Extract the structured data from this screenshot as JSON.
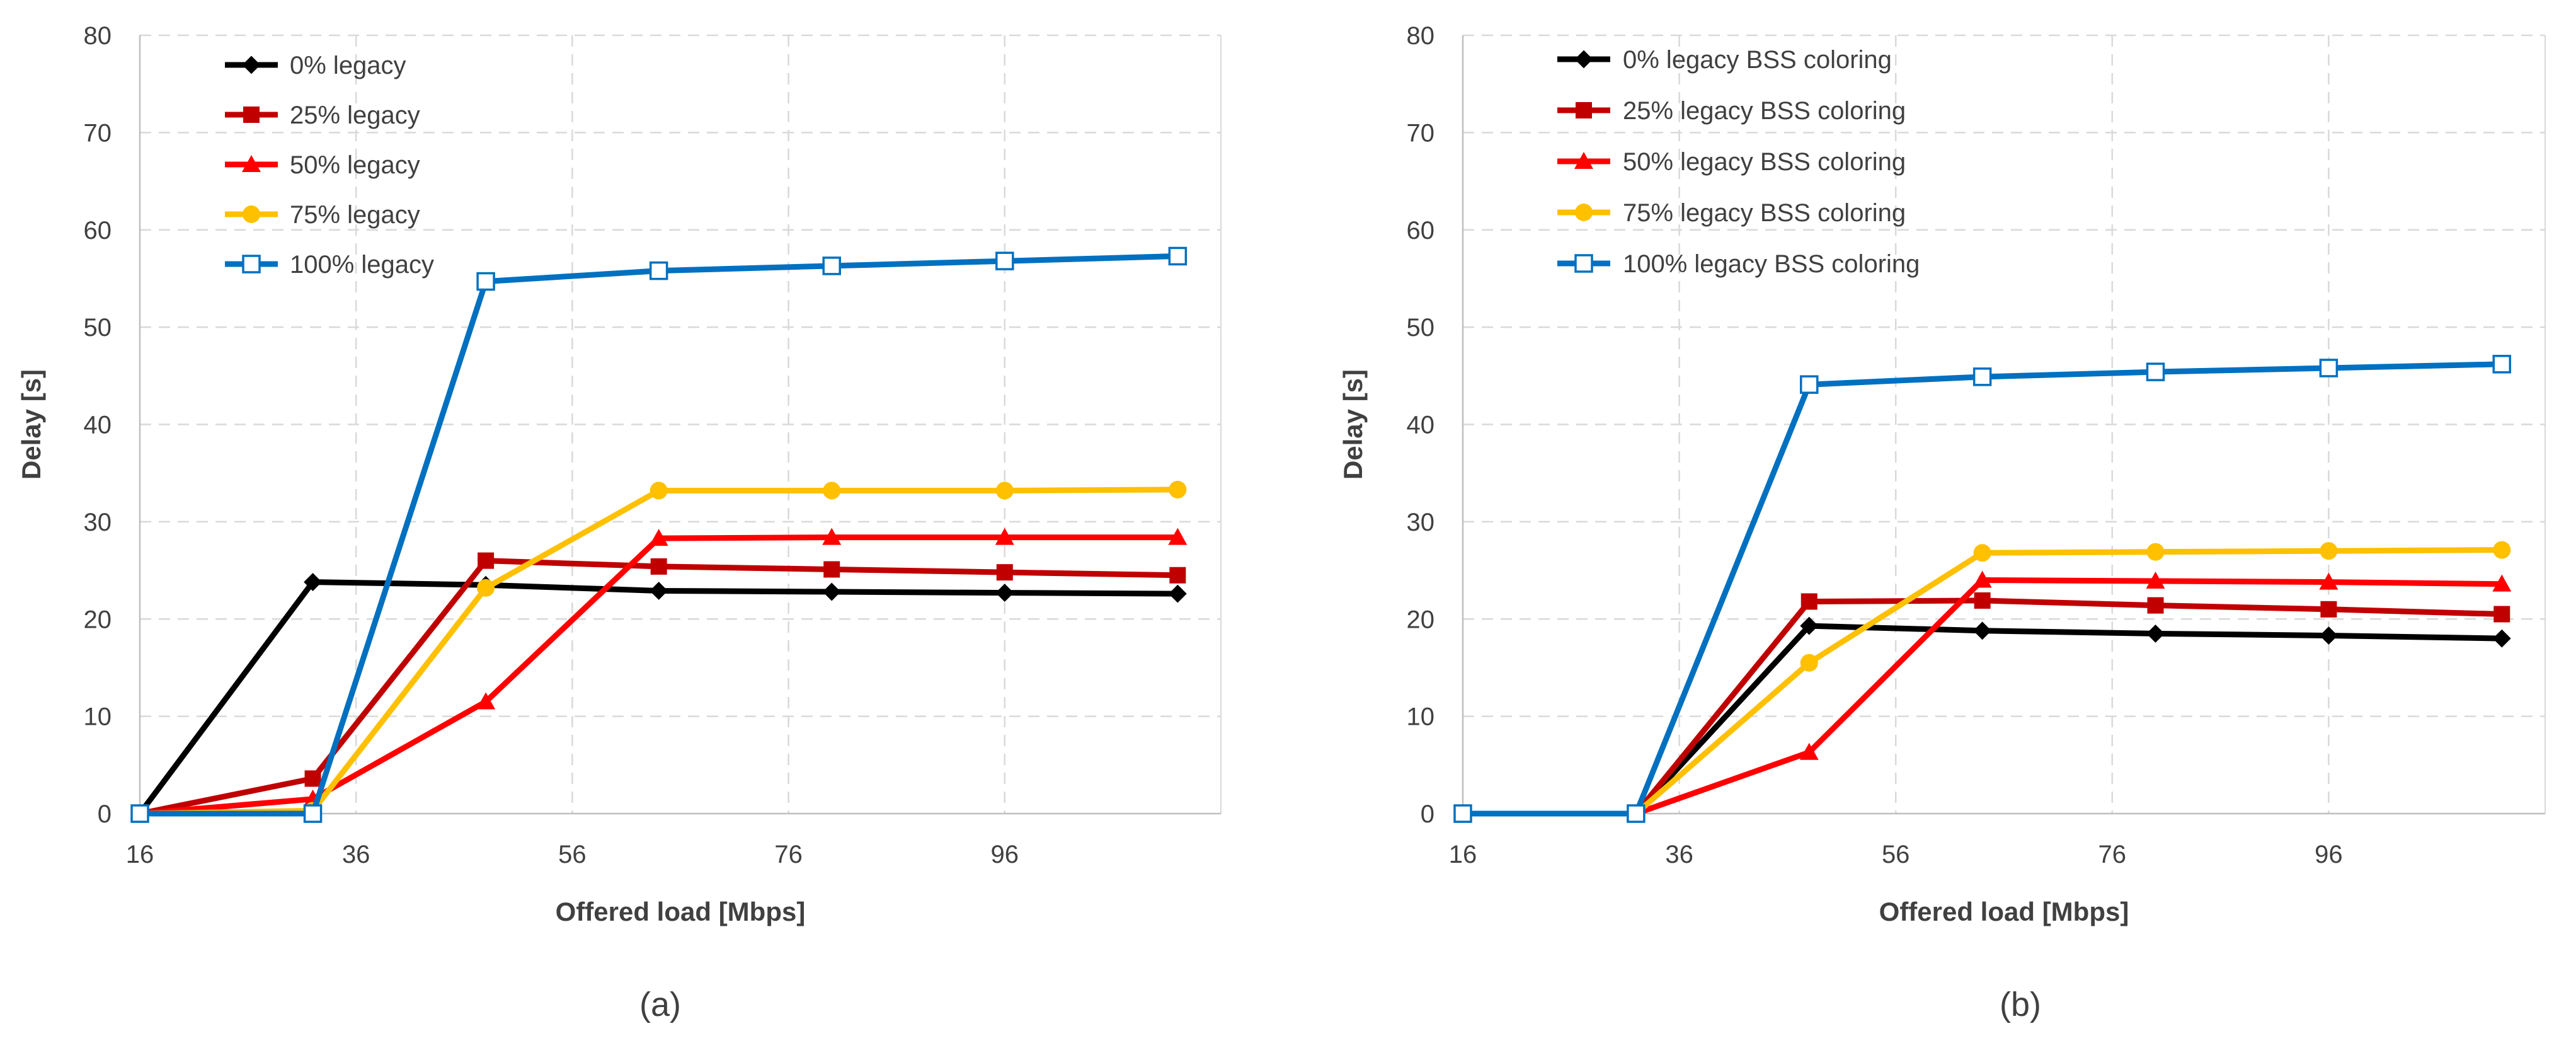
{
  "colors": {
    "series": [
      "#000000",
      "#C00000",
      "#FF0000",
      "#FFC000",
      "#0070C0"
    ],
    "grid": "#D9D9D9",
    "axis": "#BFBFBF",
    "text": "#404040"
  },
  "chart_data": [
    {
      "type": "line",
      "caption": "(a)",
      "xlabel": "Offered load [Mbps]",
      "ylabel": "Delay [s]",
      "xlim": [
        16,
        116
      ],
      "ylim": [
        0,
        80
      ],
      "xticks": [
        16,
        36,
        56,
        76,
        96
      ],
      "yticks": [
        0,
        10,
        20,
        30,
        40,
        50,
        60,
        70,
        80
      ],
      "grid": true,
      "legend": "top-left",
      "x": [
        16,
        32,
        48,
        64,
        80,
        96,
        112
      ],
      "series": [
        {
          "name": "0% legacy",
          "marker": "diamond",
          "values": [
            0,
            23.8,
            23.5,
            22.9,
            22.8,
            22.7,
            22.6
          ]
        },
        {
          "name": "25% legacy",
          "marker": "square",
          "values": [
            0,
            3.6,
            26.0,
            25.4,
            25.1,
            24.8,
            24.5
          ]
        },
        {
          "name": "50% legacy",
          "marker": "triangle",
          "values": [
            0,
            1.5,
            11.5,
            28.3,
            28.4,
            28.4,
            28.4
          ]
        },
        {
          "name": "75% legacy",
          "marker": "circle",
          "values": [
            0,
            0.3,
            23.2,
            33.2,
            33.2,
            33.2,
            33.3
          ]
        },
        {
          "name": "100% legacy",
          "marker": "open-square",
          "values": [
            0,
            0,
            54.7,
            55.8,
            56.3,
            56.8,
            57.3
          ]
        }
      ]
    },
    {
      "type": "line",
      "caption": "(b)",
      "xlabel": "Offered load [Mbps]",
      "ylabel": "Delay [s]",
      "xlim": [
        16,
        116
      ],
      "ylim": [
        0,
        80
      ],
      "xticks": [
        16,
        36,
        56,
        76,
        96
      ],
      "yticks": [
        0,
        10,
        20,
        30,
        40,
        50,
        60,
        70,
        80
      ],
      "grid": true,
      "legend": "top-left",
      "x": [
        16,
        32,
        48,
        64,
        80,
        96,
        112
      ],
      "series": [
        {
          "name": "0% legacy BSS coloring",
          "marker": "diamond",
          "values": [
            0,
            0,
            19.3,
            18.8,
            18.5,
            18.3,
            18.0
          ]
        },
        {
          "name": "25% legacy BSS coloring",
          "marker": "square",
          "values": [
            0,
            0,
            21.8,
            21.9,
            21.4,
            21.0,
            20.5
          ]
        },
        {
          "name": "50% legacy BSS coloring",
          "marker": "triangle",
          "values": [
            0,
            0,
            6.3,
            24.0,
            23.9,
            23.8,
            23.6
          ]
        },
        {
          "name": "75% legacy BSS coloring",
          "marker": "circle",
          "values": [
            0,
            0,
            15.5,
            26.8,
            26.9,
            27.0,
            27.1
          ]
        },
        {
          "name": "100% legacy BSS coloring",
          "marker": "open-square",
          "values": [
            0,
            0,
            44.1,
            44.9,
            45.4,
            45.8,
            46.2
          ]
        }
      ]
    }
  ]
}
